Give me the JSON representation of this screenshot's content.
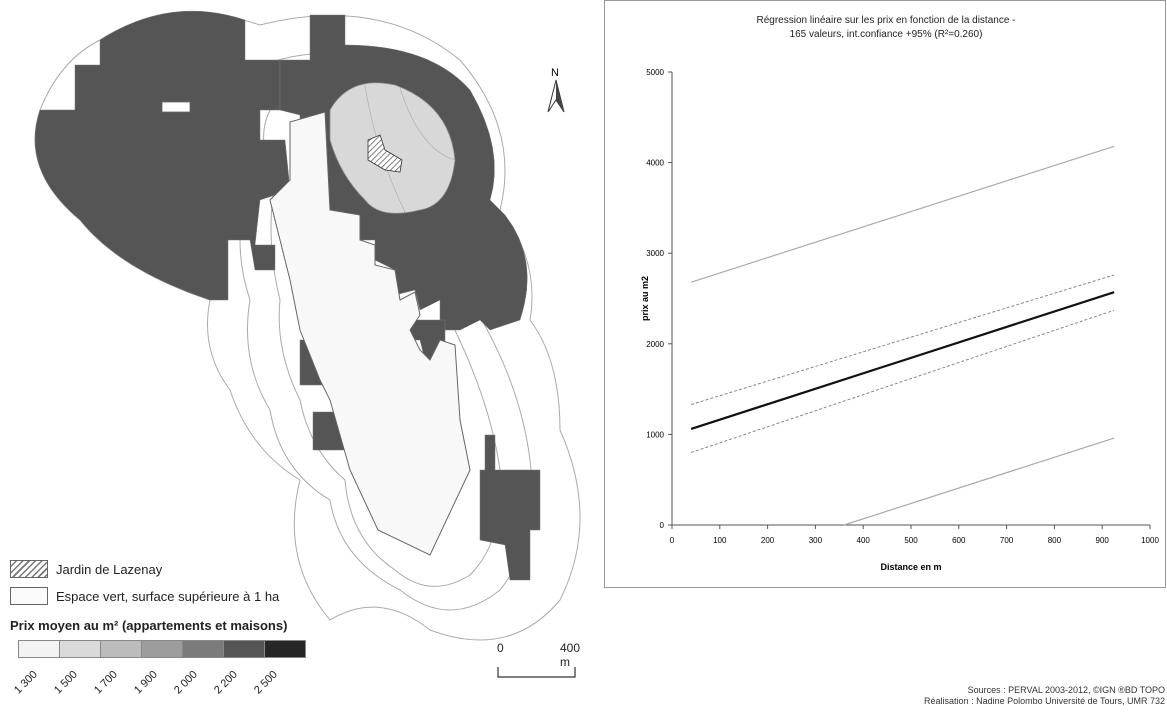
{
  "map": {
    "north_label": "N",
    "legend": {
      "garden_label": "Jardin de Lazenay",
      "green_space_label": "Espace vert, surface supérieure à 1 ha",
      "price_title": "Prix moyen au m² (appartements et maisons)",
      "classes": [
        "1 300",
        "1 500",
        "1 700",
        "1 900",
        "2 000",
        "2 200",
        "2 500"
      ],
      "class_colors": [
        "#f3f3f3",
        "#dadada",
        "#bcbcbc",
        "#9d9d9d",
        "#7b7b7b",
        "#555555",
        "#262626"
      ]
    },
    "scale_bar": {
      "start": "0",
      "end": "400 m"
    },
    "sources_line1": "Sources : PERVAL 2003-2012, ©IGN ®BD TOPO",
    "sources_line2": "Réalisation : Nadine Polombo Université de Tours, UMR 732"
  },
  "chart_data": {
    "type": "line",
    "title_line1": "Régression linéaire sur les prix en fonction de la distance -",
    "title_line2": "165 valeurs, int.confiance +95% (R²=0.260)",
    "xlabel": "Distance en m",
    "ylabel": "prix au m2",
    "xlim": [
      0,
      1000
    ],
    "ylim": [
      0,
      5000
    ],
    "xticks": [
      0,
      100,
      200,
      300,
      400,
      500,
      600,
      700,
      800,
      900,
      1000
    ],
    "yticks": [
      0,
      1000,
      2000,
      3000,
      4000,
      5000
    ],
    "series": [
      {
        "x": [
          40,
          925
        ],
        "y": [
          1060,
          2570
        ],
        "style": "solid-thick"
      },
      {
        "x": [
          40,
          925
        ],
        "y": [
          1330,
          2760
        ],
        "style": "dashed"
      },
      {
        "x": [
          40,
          925
        ],
        "y": [
          800,
          2370
        ],
        "style": "dashed"
      },
      {
        "x": [
          40,
          925
        ],
        "y": [
          2680,
          4180
        ],
        "style": "solid-thin"
      },
      {
        "x": [
          360,
          925
        ],
        "y": [
          0,
          960
        ],
        "style": "solid-thin"
      }
    ]
  }
}
